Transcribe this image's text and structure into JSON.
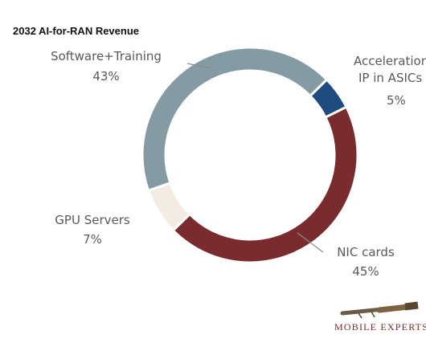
{
  "chart_data": {
    "type": "pie",
    "title": "2032 AI-for-RAN Revenue",
    "categories": [
      "Acceleration IP in ASICs",
      "NIC cards",
      "GPU Servers",
      "Software+Training"
    ],
    "values": [
      5,
      45,
      7,
      43
    ],
    "value_labels": [
      "5%",
      "45%",
      "7%",
      "43%"
    ],
    "colors": [
      "#1f4b80",
      "#7a2b2e",
      "#f3ece2",
      "#849ba3"
    ],
    "donut": true
  },
  "labels": {
    "acceleration_line1": "Acceleration",
    "acceleration_line2": "IP in ASICs",
    "acceleration_pct": "5%",
    "nic_name": "NIC cards",
    "nic_pct": "45%",
    "gpu_name": "GPU Servers",
    "gpu_pct": "7%",
    "software_name": "Software+Training",
    "software_pct": "43%"
  },
  "brand": {
    "logo_text": "MOBILE EXPERTS",
    "logo_icon": "spyglass-icon"
  }
}
